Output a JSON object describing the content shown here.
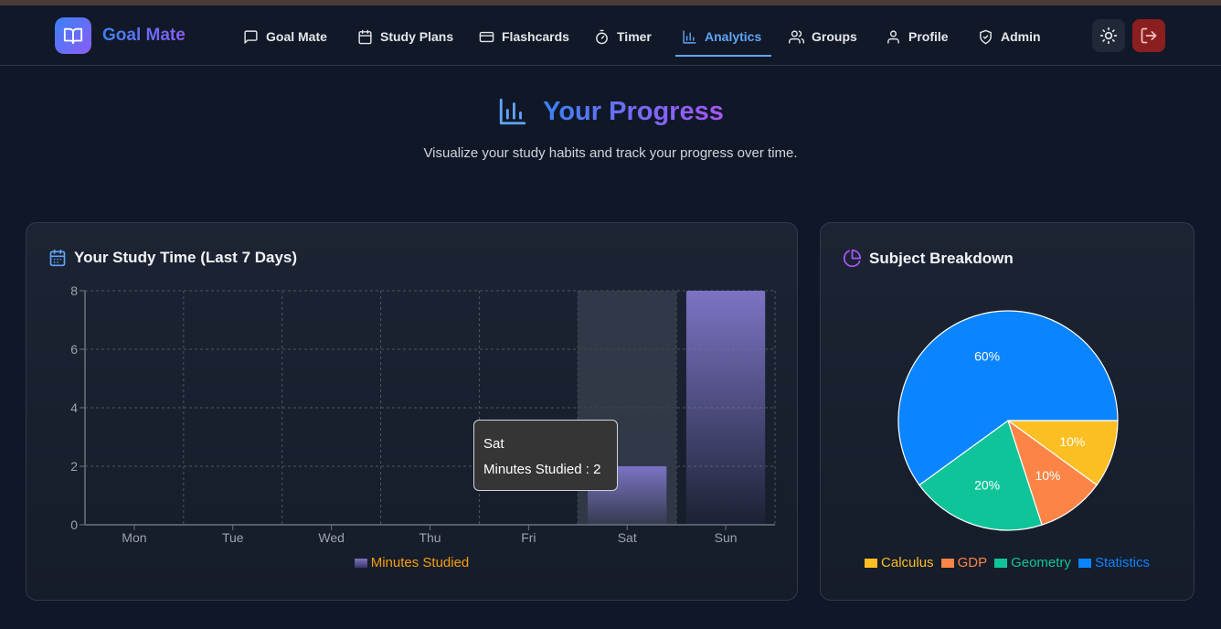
{
  "app": {
    "name": "Goal Mate"
  },
  "nav": {
    "items": [
      {
        "label": "Goal Mate",
        "icon": "message-square-icon"
      },
      {
        "label": "Study Plans",
        "icon": "calendar-icon"
      },
      {
        "label": "Flashcards",
        "icon": "credit-card-icon"
      },
      {
        "label": "Timer",
        "icon": "timer-icon"
      },
      {
        "label": "Analytics",
        "icon": "bar-chart-icon",
        "active": true
      },
      {
        "label": "Groups",
        "icon": "users-icon"
      },
      {
        "label": "Profile",
        "icon": "user-icon"
      },
      {
        "label": "Admin",
        "icon": "shield-check-icon"
      }
    ],
    "theme_toggle_icon": "sun-icon",
    "logout_icon": "logout-icon"
  },
  "page": {
    "title": "Your Progress",
    "subtitle": "Visualize your study habits and track your progress over time."
  },
  "study_time_card": {
    "title": "Your Study Time (Last 7 Days)"
  },
  "subject_card": {
    "title": "Subject Breakdown"
  },
  "tooltip": {
    "label": "Sat",
    "series_text": "Minutes Studied : 2"
  },
  "colors": {
    "accent": "#60a5fa",
    "bar": "#7c73c4",
    "legend_text": "#f59e0b",
    "calculus": "#fbbf24",
    "gdp": "#fb8446",
    "geometry": "#10c49a",
    "statistics": "#0a84ff"
  },
  "chart_data": [
    {
      "type": "bar",
      "categories": [
        "Mon",
        "Tue",
        "Wed",
        "Thu",
        "Fri",
        "Sat",
        "Sun"
      ],
      "series": [
        {
          "name": "Minutes Studied",
          "values": [
            0,
            0,
            0,
            0,
            0,
            2,
            8
          ]
        }
      ],
      "ylim": [
        0,
        8
      ],
      "yticks": [
        0,
        2,
        4,
        6,
        8
      ],
      "grid": true,
      "legend": "bottom",
      "highlighted_category": "Sat"
    },
    {
      "type": "pie",
      "labels": [
        "Calculus",
        "GDP",
        "Geometry",
        "Statistics"
      ],
      "values": [
        10,
        10,
        20,
        60
      ],
      "slice_labels": [
        "10%",
        "10%",
        "20%",
        "60%"
      ],
      "legend": "bottom"
    }
  ]
}
